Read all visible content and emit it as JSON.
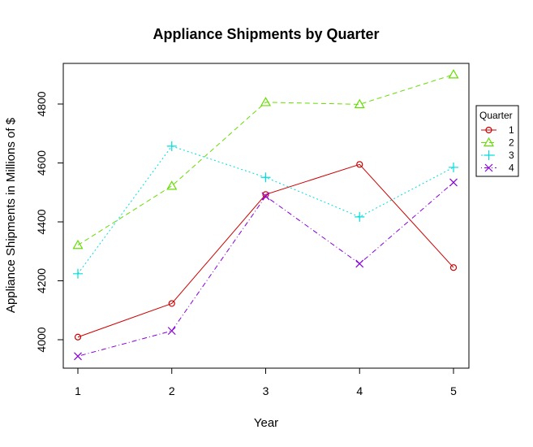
{
  "chart_data": {
    "type": "line",
    "title": "Appliance Shipments by Quarter",
    "xlabel": "Year",
    "ylabel": "Appliance Shipments in Millions of $",
    "x": [
      1,
      2,
      3,
      4,
      5
    ],
    "xlim": [
      1,
      5
    ],
    "ylim": [
      3900,
      4950
    ],
    "yticks": [
      4000,
      4200,
      4400,
      4600,
      4800
    ],
    "grid": false,
    "legend": {
      "title": "Quarter",
      "placement": "right"
    },
    "series": [
      {
        "name": "1",
        "color": "#CC0000",
        "marker": "circle",
        "dash": "solid",
        "values": [
          4009,
          4123,
          4493,
          4595,
          4245
        ]
      },
      {
        "name": "2",
        "color": "#66DD00",
        "marker": "triangle",
        "dash": "dashed",
        "values": [
          4321,
          4522,
          4806,
          4799,
          4900
        ]
      },
      {
        "name": "3",
        "color": "#00DDDD",
        "marker": "plus",
        "dash": "dotted",
        "values": [
          4224,
          4657,
          4551,
          4417,
          4585
        ]
      },
      {
        "name": "4",
        "color": "#8800DD",
        "marker": "x",
        "dash": "dotdash",
        "values": [
          3944,
          4030,
          4487,
          4258,
          4534
        ]
      }
    ]
  }
}
